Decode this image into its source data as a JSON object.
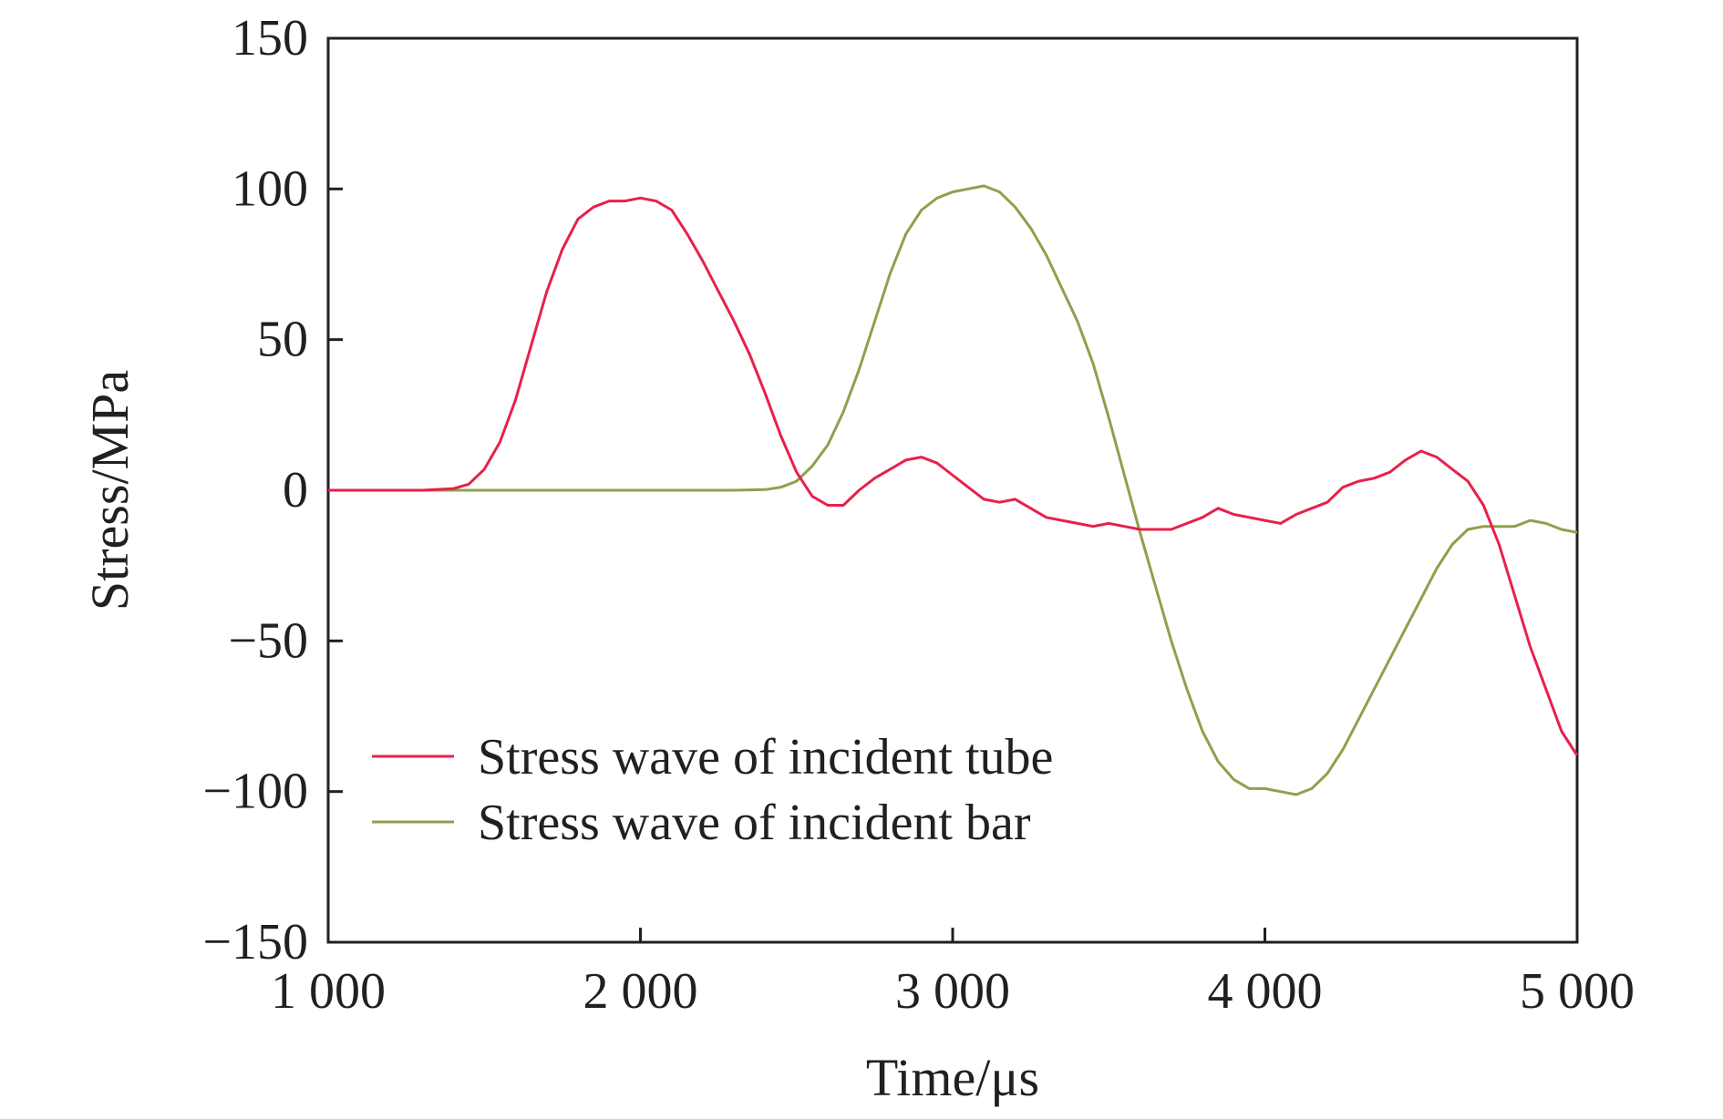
{
  "chart_data": {
    "type": "line",
    "title": "",
    "xlabel": "Time/μs",
    "ylabel": "Stress/MPa",
    "xlim": [
      1000,
      5000
    ],
    "ylim": [
      -150,
      150
    ],
    "grid": false,
    "legend_position": "lower-left",
    "x_ticks": [
      1000,
      2000,
      3000,
      4000,
      5000
    ],
    "x_tick_labels": [
      "1 000",
      "2 000",
      "3 000",
      "4 000",
      "5 000"
    ],
    "y_ticks": [
      150,
      100,
      50,
      0,
      -50,
      -100,
      -150
    ],
    "y_tick_labels": [
      "150",
      "100",
      "50",
      "0",
      "−50",
      "−100",
      "−150"
    ],
    "series": [
      {
        "name": "Stress wave of incident tube",
        "color": "#e8204a",
        "points": [
          [
            1000,
            0
          ],
          [
            1300,
            0
          ],
          [
            1400,
            0.5
          ],
          [
            1450,
            2
          ],
          [
            1500,
            7
          ],
          [
            1550,
            16
          ],
          [
            1600,
            30
          ],
          [
            1650,
            48
          ],
          [
            1700,
            66
          ],
          [
            1750,
            80
          ],
          [
            1800,
            90
          ],
          [
            1850,
            94
          ],
          [
            1900,
            96
          ],
          [
            1950,
            96
          ],
          [
            2000,
            97
          ],
          [
            2050,
            96
          ],
          [
            2100,
            93
          ],
          [
            2150,
            85
          ],
          [
            2200,
            76
          ],
          [
            2250,
            66
          ],
          [
            2300,
            56
          ],
          [
            2350,
            45
          ],
          [
            2400,
            32
          ],
          [
            2450,
            18
          ],
          [
            2500,
            6
          ],
          [
            2550,
            -2
          ],
          [
            2600,
            -5
          ],
          [
            2650,
            -5
          ],
          [
            2700,
            0
          ],
          [
            2750,
            4
          ],
          [
            2800,
            7
          ],
          [
            2850,
            10
          ],
          [
            2900,
            11
          ],
          [
            2950,
            9
          ],
          [
            3000,
            5
          ],
          [
            3050,
            1
          ],
          [
            3100,
            -3
          ],
          [
            3150,
            -4
          ],
          [
            3200,
            -3
          ],
          [
            3250,
            -6
          ],
          [
            3300,
            -9
          ],
          [
            3350,
            -10
          ],
          [
            3400,
            -11
          ],
          [
            3450,
            -12
          ],
          [
            3500,
            -11
          ],
          [
            3550,
            -12
          ],
          [
            3600,
            -13
          ],
          [
            3650,
            -13
          ],
          [
            3700,
            -13
          ],
          [
            3750,
            -11
          ],
          [
            3800,
            -9
          ],
          [
            3850,
            -6
          ],
          [
            3900,
            -8
          ],
          [
            3950,
            -9
          ],
          [
            4000,
            -10
          ],
          [
            4050,
            -11
          ],
          [
            4100,
            -8
          ],
          [
            4150,
            -6
          ],
          [
            4200,
            -4
          ],
          [
            4250,
            1
          ],
          [
            4300,
            3
          ],
          [
            4350,
            4
          ],
          [
            4400,
            6
          ],
          [
            4450,
            10
          ],
          [
            4500,
            13
          ],
          [
            4550,
            11
          ],
          [
            4600,
            7
          ],
          [
            4650,
            3
          ],
          [
            4700,
            -5
          ],
          [
            4750,
            -18
          ],
          [
            4800,
            -35
          ],
          [
            4850,
            -52
          ],
          [
            4900,
            -66
          ],
          [
            4950,
            -80
          ],
          [
            5000,
            -88
          ]
        ]
      },
      {
        "name": "Stress wave of incident bar",
        "color": "#8fa04c",
        "points": [
          [
            1000,
            0
          ],
          [
            2300,
            0
          ],
          [
            2400,
            0.2
          ],
          [
            2450,
            1
          ],
          [
            2500,
            3
          ],
          [
            2550,
            8
          ],
          [
            2600,
            15
          ],
          [
            2650,
            26
          ],
          [
            2700,
            40
          ],
          [
            2750,
            56
          ],
          [
            2800,
            72
          ],
          [
            2850,
            85
          ],
          [
            2900,
            93
          ],
          [
            2950,
            97
          ],
          [
            3000,
            99
          ],
          [
            3050,
            100
          ],
          [
            3100,
            101
          ],
          [
            3150,
            99
          ],
          [
            3200,
            94
          ],
          [
            3250,
            87
          ],
          [
            3300,
            78
          ],
          [
            3350,
            67
          ],
          [
            3400,
            56
          ],
          [
            3450,
            42
          ],
          [
            3500,
            24
          ],
          [
            3550,
            5
          ],
          [
            3600,
            -14
          ],
          [
            3650,
            -32
          ],
          [
            3700,
            -50
          ],
          [
            3750,
            -66
          ],
          [
            3800,
            -80
          ],
          [
            3850,
            -90
          ],
          [
            3900,
            -96
          ],
          [
            3950,
            -99
          ],
          [
            4000,
            -99
          ],
          [
            4050,
            -100
          ],
          [
            4100,
            -101
          ],
          [
            4150,
            -99
          ],
          [
            4200,
            -94
          ],
          [
            4250,
            -86
          ],
          [
            4300,
            -76
          ],
          [
            4350,
            -66
          ],
          [
            4400,
            -56
          ],
          [
            4450,
            -46
          ],
          [
            4500,
            -36
          ],
          [
            4550,
            -26
          ],
          [
            4600,
            -18
          ],
          [
            4650,
            -13
          ],
          [
            4700,
            -12
          ],
          [
            4750,
            -12
          ],
          [
            4800,
            -12
          ],
          [
            4850,
            -10
          ],
          [
            4900,
            -11
          ],
          [
            4950,
            -13
          ],
          [
            5000,
            -14
          ]
        ]
      }
    ]
  }
}
